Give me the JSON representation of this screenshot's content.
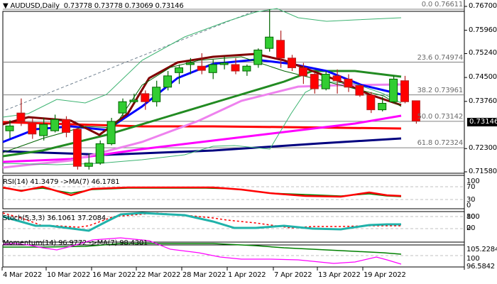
{
  "header": {
    "symbol": "AUDUSD,Daily",
    "ohlc": "0.73778 0.73778 0.73069 0.73146"
  },
  "price_axis": {
    "ticks": [
      "0.76700",
      "0.75960",
      "0.75240",
      "0.74500",
      "0.73760",
      "0.73040",
      "0.72300",
      "0.71580"
    ],
    "current_price": "0.73146"
  },
  "fibonacci": {
    "levels": [
      {
        "label": "0.0 0.76611"
      },
      {
        "label": "23.6 0.74974"
      },
      {
        "label": "38.2 0.73961"
      },
      {
        "label": "50.0 0.73142"
      },
      {
        "label": "61.8 0.72324"
      }
    ]
  },
  "rsi": {
    "label": "RSI(14) 41.3479  ->MA(7) 46.1781",
    "ticks": [
      "100",
      "70",
      "30",
      "0"
    ]
  },
  "stoch": {
    "label": "Stoch(5,3,3) 36.1061 37.2084",
    "ticks": [
      "80",
      "100",
      "0",
      "20"
    ]
  },
  "momentum": {
    "label": "Momentum(14) 96.9772  ->MA(7) 98.4301",
    "ticks": [
      "105.2284",
      "100",
      "96.5842"
    ]
  },
  "time_axis": {
    "dates": [
      "4 Mar 2022",
      "10 Mar 2022",
      "16 Mar 2022",
      "22 Mar 2022",
      "28 Mar 2022",
      "1 Apr 2022",
      "7 Apr 2022",
      "13 Apr 2022",
      "19 Apr 2022"
    ]
  },
  "chart_data": {
    "type": "candlestick",
    "title": "AUDUSD, Daily",
    "ylim": [
      0.715,
      0.768
    ],
    "candles": [
      {
        "date": "3 Mar",
        "o": 0.7285,
        "h": 0.7318,
        "l": 0.7262,
        "c": 0.73
      },
      {
        "date": "4 Mar",
        "o": 0.734,
        "h": 0.7385,
        "l": 0.73,
        "c": 0.7314
      },
      {
        "date": "7 Mar",
        "o": 0.731,
        "h": 0.7325,
        "l": 0.726,
        "c": 0.7275
      },
      {
        "date": "8 Mar",
        "o": 0.727,
        "h": 0.7325,
        "l": 0.7255,
        "c": 0.7305
      },
      {
        "date": "9 Mar",
        "o": 0.7285,
        "h": 0.7335,
        "l": 0.728,
        "c": 0.732
      },
      {
        "date": "10 Mar",
        "o": 0.732,
        "h": 0.733,
        "l": 0.7265,
        "c": 0.728
      },
      {
        "date": "11 Mar",
        "o": 0.729,
        "h": 0.7295,
        "l": 0.7165,
        "c": 0.7175
      },
      {
        "date": "14 Mar",
        "o": 0.7175,
        "h": 0.7215,
        "l": 0.7165,
        "c": 0.7185
      },
      {
        "date": "15 Mar",
        "o": 0.7185,
        "h": 0.7255,
        "l": 0.718,
        "c": 0.7245
      },
      {
        "date": "16 Mar",
        "o": 0.7245,
        "h": 0.7325,
        "l": 0.724,
        "c": 0.7314
      },
      {
        "date": "17 Mar",
        "o": 0.734,
        "h": 0.7385,
        "l": 0.733,
        "c": 0.7375
      },
      {
        "date": "18 Mar",
        "o": 0.7375,
        "h": 0.74,
        "l": 0.737,
        "c": 0.738
      },
      {
        "date": "21 Mar",
        "o": 0.74,
        "h": 0.741,
        "l": 0.735,
        "c": 0.7375
      },
      {
        "date": "22 Mar",
        "o": 0.7375,
        "h": 0.744,
        "l": 0.736,
        "c": 0.742
      },
      {
        "date": "23 Mar",
        "o": 0.742,
        "h": 0.747,
        "l": 0.741,
        "c": 0.7455
      },
      {
        "date": "24 Mar",
        "o": 0.7465,
        "h": 0.749,
        "l": 0.743,
        "c": 0.748
      },
      {
        "date": "25 Mar",
        "o": 0.749,
        "h": 0.751,
        "l": 0.746,
        "c": 0.7495
      },
      {
        "date": "28 Mar",
        "o": 0.7485,
        "h": 0.7525,
        "l": 0.746,
        "c": 0.7472
      },
      {
        "date": "29 Mar",
        "o": 0.7465,
        "h": 0.7505,
        "l": 0.7445,
        "c": 0.749
      },
      {
        "date": "30 Mar",
        "o": 0.749,
        "h": 0.7515,
        "l": 0.7475,
        "c": 0.7495
      },
      {
        "date": "31 Mar",
        "o": 0.749,
        "h": 0.751,
        "l": 0.746,
        "c": 0.747
      },
      {
        "date": "1 Apr",
        "o": 0.747,
        "h": 0.749,
        "l": 0.7455,
        "c": 0.7485
      },
      {
        "date": "4 Apr",
        "o": 0.749,
        "h": 0.754,
        "l": 0.748,
        "c": 0.7535
      },
      {
        "date": "5 Apr",
        "o": 0.754,
        "h": 0.7661,
        "l": 0.753,
        "c": 0.7575
      },
      {
        "date": "6 Apr",
        "o": 0.7565,
        "h": 0.7595,
        "l": 0.748,
        "c": 0.751
      },
      {
        "date": "7 Apr",
        "o": 0.751,
        "h": 0.752,
        "l": 0.747,
        "c": 0.748
      },
      {
        "date": "8 Apr",
        "o": 0.748,
        "h": 0.7495,
        "l": 0.743,
        "c": 0.7455
      },
      {
        "date": "11 Apr",
        "o": 0.746,
        "h": 0.7465,
        "l": 0.74,
        "c": 0.7415
      },
      {
        "date": "12 Apr",
        "o": 0.7415,
        "h": 0.747,
        "l": 0.741,
        "c": 0.746
      },
      {
        "date": "13 Apr",
        "o": 0.7455,
        "h": 0.7475,
        "l": 0.74,
        "c": 0.744
      },
      {
        "date": "14 Apr",
        "o": 0.7445,
        "h": 0.746,
        "l": 0.7405,
        "c": 0.742
      },
      {
        "date": "15 Apr",
        "o": 0.7425,
        "h": 0.743,
        "l": 0.739,
        "c": 0.7395
      },
      {
        "date": "18 Apr",
        "o": 0.7395,
        "h": 0.7405,
        "l": 0.734,
        "c": 0.735
      },
      {
        "date": "19 Apr",
        "o": 0.735,
        "h": 0.739,
        "l": 0.7345,
        "c": 0.737
      },
      {
        "date": "20 Apr",
        "o": 0.7375,
        "h": 0.7455,
        "l": 0.737,
        "c": 0.7445
      },
      {
        "date": "21 Apr",
        "o": 0.744,
        "h": 0.7455,
        "l": 0.737,
        "c": 0.7375
      },
      {
        "date": "22 Apr",
        "o": 0.7378,
        "h": 0.7378,
        "l": 0.7307,
        "c": 0.7315
      }
    ],
    "fib_levels": [
      0.76611,
      0.74974,
      0.73961,
      0.73142,
      0.72324
    ],
    "indicators": [
      "SMA lines",
      "Bollinger Bands",
      "RSI(14)",
      "Stoch(5,3,3)",
      "Momentum(14)"
    ]
  }
}
